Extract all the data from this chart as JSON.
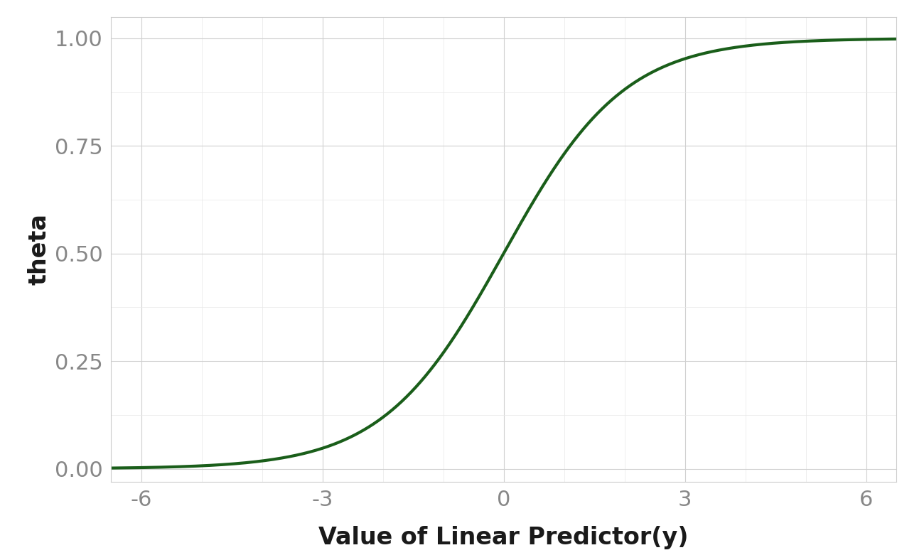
{
  "title": "",
  "xlabel": "Value of Linear Predictor(y)",
  "ylabel": "theta",
  "xlim": [
    -6.5,
    6.5
  ],
  "ylim": [
    -0.03,
    1.05
  ],
  "x_ticks": [
    -6,
    -3,
    0,
    3,
    6
  ],
  "y_ticks": [
    0.0,
    0.25,
    0.5,
    0.75,
    1.0
  ],
  "line_color": "#1a5e1a",
  "line_width": 3.0,
  "background_color": "#ffffff",
  "grid_color": "#d0d0d0",
  "xlabel_fontsize": 24,
  "ylabel_fontsize": 24,
  "tick_fontsize": 22,
  "tick_color": "#888888",
  "label_color": "#1a1a1a",
  "spine_color": "#cccccc"
}
